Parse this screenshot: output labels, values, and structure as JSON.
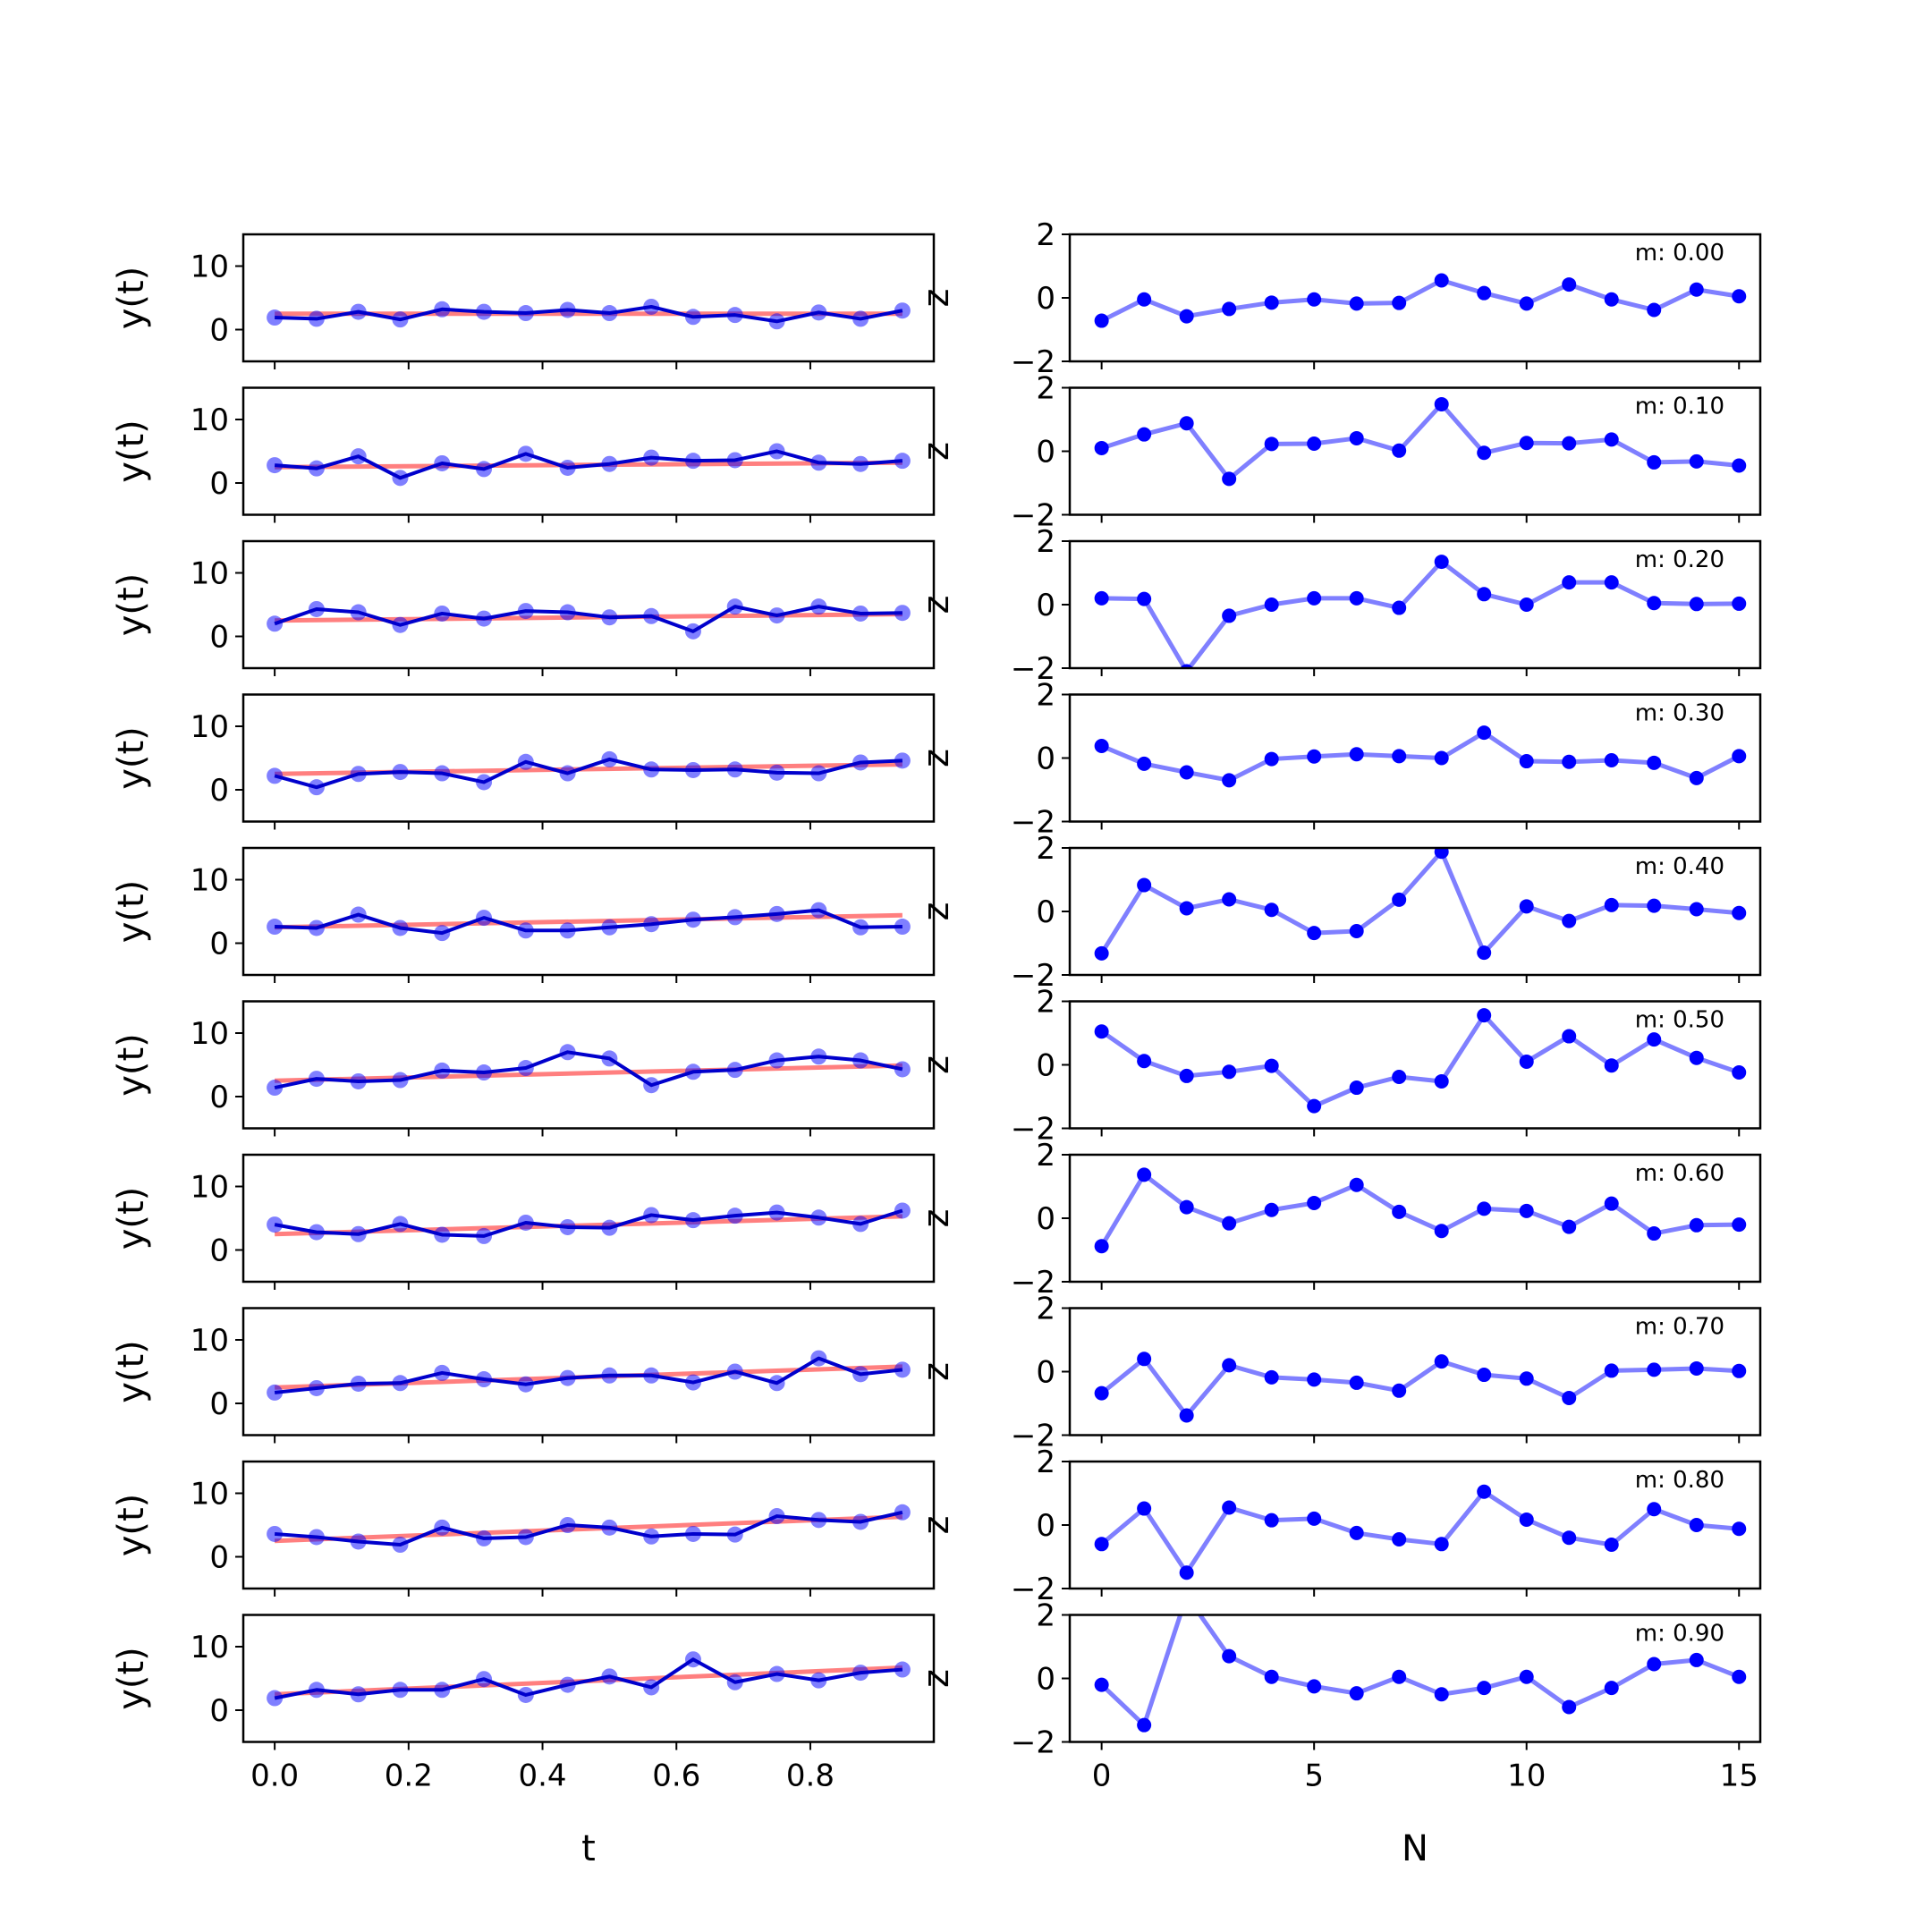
{
  "chart_data": {
    "type": "line",
    "layout": "10 rows x 2 columns",
    "left_panels": {
      "xlabel": "t",
      "ylabel": "y(t)",
      "xlim": [
        -0.0469,
        0.9844
      ],
      "ylim": [
        -5,
        15
      ],
      "xticks": [
        0.0,
        0.2,
        0.4,
        0.6,
        0.8
      ],
      "xtick_labels": [
        "0.0",
        "0.2",
        "0.4",
        "0.6",
        "0.8"
      ],
      "yticks": [
        0,
        10
      ],
      "ytick_labels": [
        "0",
        "10"
      ],
      "x": [
        0.0,
        0.0625,
        0.125,
        0.1875,
        0.25,
        0.3125,
        0.375,
        0.4375,
        0.5,
        0.5625,
        0.625,
        0.6875,
        0.75,
        0.8125,
        0.875,
        0.9375
      ],
      "colors": {
        "data": "#0000cc",
        "points": "#0000ff",
        "fit": "#ff0000"
      },
      "series": [
        {
          "values": [
            1.9,
            1.7,
            2.8,
            1.6,
            3.2,
            2.8,
            2.6,
            3.1,
            2.6,
            3.6,
            2.0,
            2.3,
            1.3,
            2.7,
            1.7,
            3.0
          ]
        },
        {
          "values": [
            2.8,
            2.3,
            4.2,
            0.8,
            3.1,
            2.2,
            4.6,
            2.4,
            3.0,
            4.0,
            3.5,
            3.6,
            5.0,
            3.2,
            3.0,
            3.5
          ]
        },
        {
          "values": [
            2.0,
            4.3,
            3.8,
            1.8,
            3.6,
            2.8,
            4.0,
            3.8,
            3.0,
            3.2,
            0.8,
            4.7,
            3.3,
            4.7,
            3.6,
            3.7
          ]
        },
        {
          "values": [
            2.2,
            0.4,
            2.5,
            2.8,
            2.6,
            1.2,
            4.4,
            2.6,
            4.8,
            3.2,
            3.1,
            3.2,
            2.7,
            2.6,
            4.3,
            4.6
          ]
        },
        {
          "values": [
            2.6,
            2.4,
            4.5,
            2.4,
            1.6,
            4.0,
            2.0,
            2.0,
            2.5,
            3.0,
            3.7,
            4.1,
            4.6,
            5.2,
            2.5,
            2.6
          ]
        },
        {
          "values": [
            1.4,
            2.8,
            2.4,
            2.6,
            4.1,
            3.8,
            4.5,
            7.0,
            6.0,
            1.8,
            3.9,
            4.2,
            5.7,
            6.3,
            5.7,
            4.3
          ]
        },
        {
          "values": [
            4.0,
            2.8,
            2.5,
            4.1,
            2.4,
            2.2,
            4.3,
            3.6,
            3.5,
            5.5,
            4.7,
            5.4,
            5.9,
            5.1,
            4.1,
            6.2
          ]
        },
        {
          "values": [
            1.7,
            2.4,
            3.1,
            3.2,
            4.8,
            3.8,
            3.0,
            4.0,
            4.4,
            4.4,
            3.3,
            5.0,
            3.2,
            7.1,
            4.6,
            5.3
          ]
        },
        {
          "values": [
            3.6,
            3.1,
            2.4,
            1.9,
            4.6,
            2.9,
            3.1,
            5.0,
            4.6,
            3.2,
            3.6,
            3.5,
            6.4,
            5.8,
            5.5,
            7.0
          ]
        },
        {
          "values": [
            1.9,
            3.2,
            2.5,
            3.2,
            3.2,
            4.9,
            2.4,
            4.0,
            5.3,
            3.6,
            8.0,
            4.4,
            5.7,
            4.7,
            5.9,
            6.4
          ]
        }
      ],
      "fit_lines": [
        {
          "start": 2.5,
          "end": 2.5
        },
        {
          "start": 2.5,
          "end": 3.2
        },
        {
          "start": 2.5,
          "end": 3.5
        },
        {
          "start": 2.5,
          "end": 4.0
        },
        {
          "start": 2.5,
          "end": 4.4
        },
        {
          "start": 2.5,
          "end": 4.9
        },
        {
          "start": 2.5,
          "end": 5.3
        },
        {
          "start": 2.5,
          "end": 5.8
        },
        {
          "start": 2.5,
          "end": 6.3
        },
        {
          "start": 2.5,
          "end": 6.7
        }
      ],
      "right_axis_glyph": "z"
    },
    "right_panels": {
      "xlabel": "N",
      "ylabel": "",
      "xlim": [
        -0.75,
        15.5
      ],
      "ylim": [
        -2,
        2
      ],
      "xticks": [
        0,
        5,
        10,
        15
      ],
      "xtick_labels": [
        "0",
        "5",
        "10",
        "15"
      ],
      "yticks": [
        -2,
        0,
        2
      ],
      "ytick_labels": [
        "−2",
        "0",
        "2"
      ],
      "x": [
        0,
        1,
        2,
        3,
        4,
        5,
        6,
        7,
        8,
        9,
        10,
        11,
        12,
        13,
        14,
        15
      ],
      "colors": {
        "line": "#0000ff",
        "points": "#0000ff"
      },
      "series": [
        {
          "annotation": "m: 0.00",
          "values": [
            -0.72,
            -0.05,
            -0.58,
            -0.35,
            -0.15,
            -0.05,
            -0.18,
            -0.16,
            0.55,
            0.15,
            -0.18,
            0.42,
            -0.05,
            -0.38,
            0.26,
            0.05
          ]
        },
        {
          "annotation": "m: 0.10",
          "values": [
            0.1,
            0.53,
            0.88,
            -0.87,
            0.23,
            0.24,
            0.41,
            0.02,
            1.48,
            -0.05,
            0.26,
            0.25,
            0.37,
            -0.35,
            -0.32,
            -0.45
          ]
        },
        {
          "annotation": "m: 0.20",
          "values": [
            0.2,
            0.18,
            -2.1,
            -0.35,
            0.0,
            0.2,
            0.2,
            -0.1,
            1.35,
            0.33,
            0.0,
            0.7,
            0.7,
            0.05,
            0.02,
            0.03
          ]
        },
        {
          "annotation": "m: 0.30",
          "values": [
            0.38,
            -0.18,
            -0.45,
            -0.7,
            -0.03,
            0.05,
            0.12,
            0.06,
            0.0,
            0.8,
            -0.1,
            -0.12,
            -0.07,
            -0.15,
            -0.63,
            0.06
          ]
        },
        {
          "annotation": "m: 0.40",
          "values": [
            -1.32,
            0.83,
            0.1,
            0.38,
            0.05,
            -0.68,
            -0.62,
            0.37,
            1.88,
            -1.3,
            0.16,
            -0.3,
            0.2,
            0.18,
            0.07,
            -0.05
          ]
        },
        {
          "annotation": "m: 0.50",
          "values": [
            1.05,
            0.12,
            -0.35,
            -0.22,
            -0.03,
            -1.3,
            -0.72,
            -0.38,
            -0.52,
            1.56,
            0.1,
            0.9,
            -0.02,
            0.8,
            0.22,
            -0.24
          ]
        },
        {
          "annotation": "m: 0.60",
          "values": [
            -0.88,
            1.37,
            0.35,
            -0.16,
            0.26,
            0.48,
            1.05,
            0.2,
            -0.4,
            0.3,
            0.23,
            -0.27,
            0.46,
            -0.48,
            -0.22,
            -0.2
          ]
        },
        {
          "annotation": "m: 0.70",
          "values": [
            -0.68,
            0.4,
            -1.38,
            0.2,
            -0.18,
            -0.25,
            -0.35,
            -0.6,
            0.32,
            -0.1,
            -0.22,
            -0.83,
            0.03,
            0.06,
            0.1,
            0.02
          ]
        },
        {
          "annotation": "m: 0.80",
          "values": [
            -0.6,
            0.52,
            -1.5,
            0.55,
            0.15,
            0.2,
            -0.25,
            -0.45,
            -0.6,
            1.05,
            0.17,
            -0.4,
            -0.62,
            0.5,
            0.0,
            -0.12
          ]
        },
        {
          "annotation": "m: 0.90",
          "values": [
            -0.2,
            -1.47,
            2.6,
            0.7,
            0.05,
            -0.25,
            -0.47,
            0.05,
            -0.5,
            -0.3,
            0.05,
            -0.9,
            -0.3,
            0.45,
            0.58,
            0.05
          ]
        }
      ]
    }
  }
}
